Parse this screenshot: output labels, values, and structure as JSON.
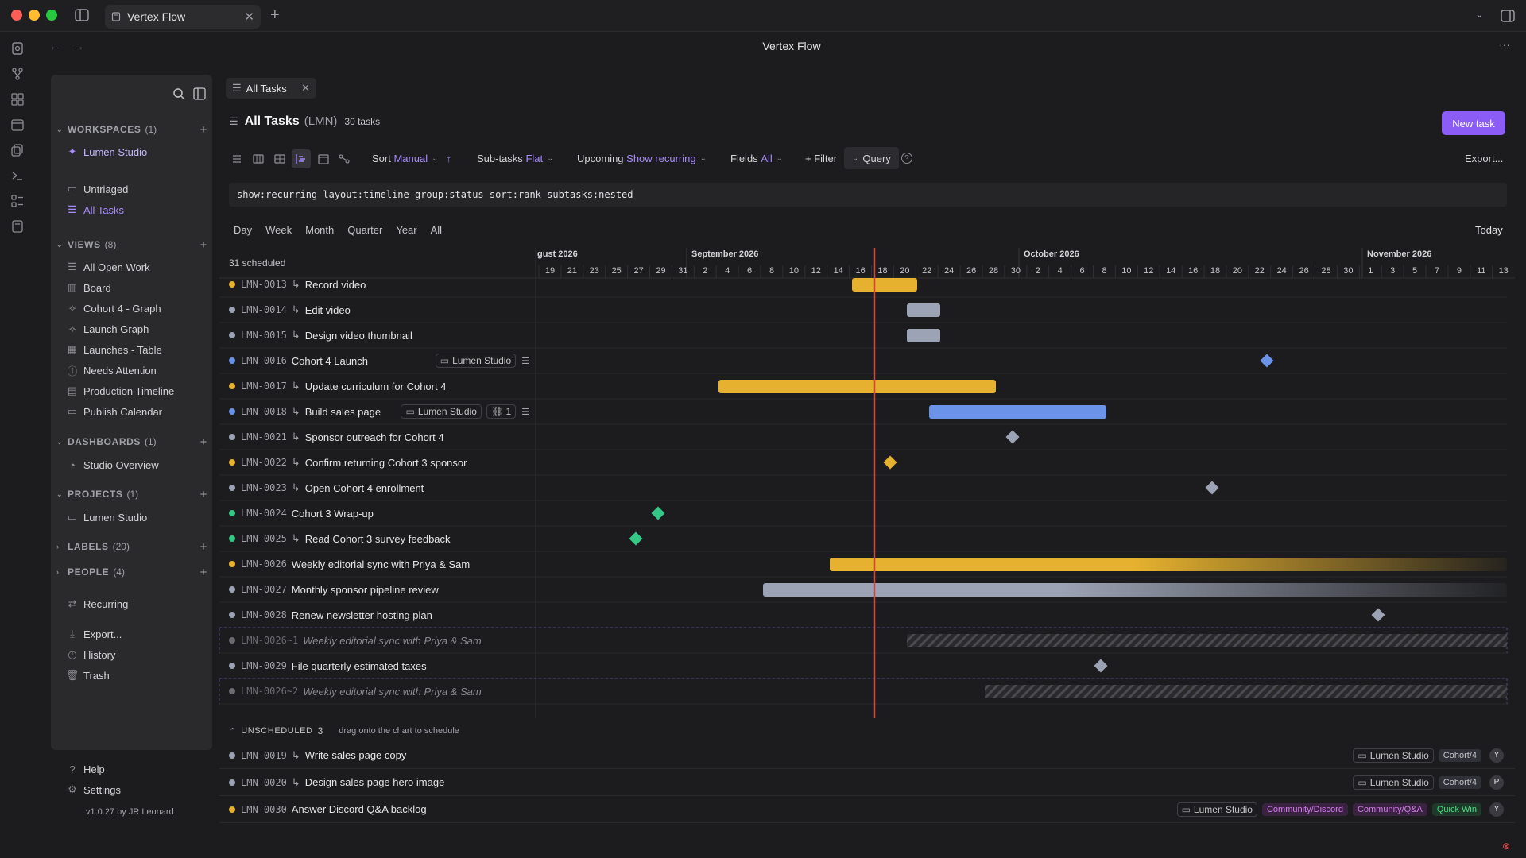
{
  "window": {
    "tab_title": "Vertex Flow",
    "app_title": "Vertex Flow"
  },
  "colors": {
    "accent": "#a78bfa",
    "yellow": "#e6b12e",
    "blue": "#6b93e8",
    "gray": "#9ca3b4",
    "green": "#34c785",
    "today_line": "#d9413c"
  },
  "sidebar": {
    "workspaces": {
      "label": "WORKSPACES",
      "count": "(1)",
      "items": [
        "Lumen Studio"
      ]
    },
    "untriaged": "Untriaged",
    "all_tasks": "All Tasks",
    "views": {
      "label": "VIEWS",
      "count": "(8)",
      "items": [
        "All Open Work",
        "Board",
        "Cohort 4 - Graph",
        "Launch Graph",
        "Launches - Table",
        "Needs Attention",
        "Production Timeline",
        "Publish Calendar"
      ]
    },
    "dashboards": {
      "label": "DASHBOARDS",
      "count": "(1)",
      "items": [
        "Studio Overview"
      ]
    },
    "projects": {
      "label": "PROJECTS",
      "count": "(1)",
      "items": [
        "Lumen Studio"
      ]
    },
    "labels": {
      "label": "LABELS",
      "count": "(20)"
    },
    "people": {
      "label": "PEOPLE",
      "count": "(4)"
    },
    "recurring": "Recurring",
    "export": "Export...",
    "history": "History",
    "trash": "Trash",
    "help": "Help",
    "settings": "Settings",
    "version": "v1.0.27 by JR Leonard"
  },
  "main": {
    "doc_tab": "All Tasks",
    "title": "All Tasks",
    "project_code": "(LMN)",
    "task_count": "30 tasks",
    "new_task": "New task",
    "toolbar": {
      "sort_label": "Sort",
      "sort_value": "Manual",
      "subtasks_label": "Sub-tasks",
      "subtasks_value": "Flat",
      "upcoming_label": "Upcoming",
      "upcoming_value": "Show recurring",
      "fields_label": "Fields",
      "fields_value": "All",
      "filter": "+ Filter",
      "query": "Query",
      "export": "Export..."
    },
    "query_text": "show:recurring layout:timeline group:status sort:rank subtasks:nested",
    "zoom": [
      "Day",
      "Week",
      "Month",
      "Quarter",
      "Year",
      "All"
    ],
    "today": "Today",
    "scheduled": "31 scheduled"
  },
  "timeline": {
    "months": [
      "gust 2026",
      "September 2026",
      "October 2026",
      "November 2026"
    ],
    "days": [
      "19",
      "21",
      "23",
      "25",
      "27",
      "29",
      "31",
      "2",
      "4",
      "6",
      "8",
      "10",
      "12",
      "14",
      "16",
      "18",
      "20",
      "22",
      "24",
      "26",
      "28",
      "30",
      "2",
      "4",
      "6",
      "8",
      "10",
      "12",
      "14",
      "16",
      "18",
      "20",
      "22",
      "24",
      "26",
      "28",
      "30",
      "1",
      "3",
      "5",
      "7",
      "9",
      "11",
      "13"
    ]
  },
  "tasks": [
    {
      "id": "LMN-0013",
      "title": "Record video",
      "sub": true,
      "color": "#e6b12e"
    },
    {
      "id": "LMN-0014",
      "title": "Edit video",
      "sub": true,
      "color": "#9ca3b4"
    },
    {
      "id": "LMN-0015",
      "title": "Design video thumbnail",
      "sub": true,
      "color": "#9ca3b4"
    },
    {
      "id": "LMN-0016",
      "title": "Cohort 4 Launch",
      "sub": false,
      "color": "#6b93e8",
      "project": "Lumen Studio"
    },
    {
      "id": "LMN-0017",
      "title": "Update curriculum for Cohort 4",
      "sub": true,
      "color": "#e6b12e"
    },
    {
      "id": "LMN-0018",
      "title": "Build sales page",
      "sub": true,
      "color": "#6b93e8",
      "project": "Lumen Studio",
      "links": "1"
    },
    {
      "id": "LMN-0021",
      "title": "Sponsor outreach for Cohort 4",
      "sub": true,
      "color": "#9ca3b4"
    },
    {
      "id": "LMN-0022",
      "title": "Confirm returning Cohort 3 sponsor",
      "sub": true,
      "color": "#e6b12e"
    },
    {
      "id": "LMN-0023",
      "title": "Open Cohort 4 enrollment",
      "sub": true,
      "color": "#9ca3b4"
    },
    {
      "id": "LMN-0024",
      "title": "Cohort 3 Wrap-up",
      "sub": false,
      "color": "#34c785"
    },
    {
      "id": "LMN-0025",
      "title": "Read Cohort 3 survey feedback",
      "sub": true,
      "color": "#34c785"
    },
    {
      "id": "LMN-0026",
      "title": "Weekly editorial sync with Priya & Sam",
      "sub": false,
      "color": "#e6b12e"
    },
    {
      "id": "LMN-0027",
      "title": "Monthly sponsor pipeline review",
      "sub": false,
      "color": "#9ca3b4"
    },
    {
      "id": "LMN-0028",
      "title": "Renew newsletter hosting plan",
      "sub": false,
      "color": "#9ca3b4"
    },
    {
      "id": "LMN-0026~1",
      "title": "Weekly editorial sync with Priya & Sam",
      "sub": false,
      "color": "#6b6b72",
      "ghost": true
    },
    {
      "id": "LMN-0029",
      "title": "File quarterly estimated taxes",
      "sub": false,
      "color": "#9ca3b4"
    },
    {
      "id": "LMN-0026~2",
      "title": "Weekly editorial sync with Priya & Sam",
      "sub": false,
      "color": "#6b6b72",
      "ghost": true
    }
  ],
  "unscheduled": {
    "label": "UNSCHEDULED",
    "count": "3",
    "hint": "drag onto the chart to schedule",
    "items": [
      {
        "id": "LMN-0019",
        "title": "Write sales page copy",
        "sub": true,
        "color": "#9ca3b4",
        "project": "Lumen Studio",
        "tags": [
          "Cohort/4"
        ],
        "avatar": "Y"
      },
      {
        "id": "LMN-0020",
        "title": "Design sales page hero image",
        "sub": true,
        "color": "#9ca3b4",
        "project": "Lumen Studio",
        "tags": [
          "Cohort/4"
        ],
        "avatar": "P"
      },
      {
        "id": "LMN-0030",
        "title": "Answer Discord Q&A backlog",
        "sub": false,
        "color": "#e6b12e",
        "project": "Lumen Studio",
        "tags": [
          "Community/Discord",
          "Community/Q&A",
          "Quick Win"
        ],
        "avatar": "Y"
      }
    ]
  }
}
